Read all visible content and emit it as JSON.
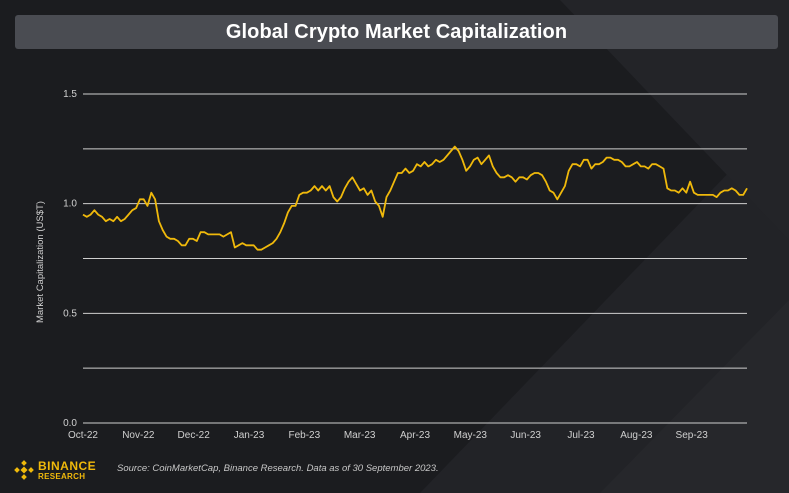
{
  "chart_data": {
    "type": "line",
    "title": "Global Crypto Market Capitalization",
    "ylabel": "Market Capitalization (US$T)",
    "xlabel": "",
    "ylim": [
      0,
      1.5
    ],
    "yticks": [
      "0.0",
      "0.5",
      "1.0",
      "1.5"
    ],
    "xtick_labels": [
      "Oct-22",
      "Nov-22",
      "Dec-22",
      "Jan-23",
      "Feb-23",
      "Mar-23",
      "Apr-23",
      "May-23",
      "Jun-23",
      "Jul-23",
      "Aug-23",
      "Sep-23"
    ],
    "grid": true,
    "series_color": "#f0b90b",
    "series": [
      {
        "values": [
          0.95,
          0.94,
          0.95,
          0.97,
          0.95,
          0.94,
          0.92,
          0.93,
          0.92,
          0.94,
          0.92,
          0.93,
          0.95,
          0.97,
          0.98,
          1.02,
          1.02,
          0.99,
          1.05,
          1.02,
          0.92,
          0.88,
          0.85,
          0.84,
          0.84,
          0.83,
          0.81,
          0.81,
          0.84,
          0.84,
          0.83,
          0.87,
          0.87,
          0.86,
          0.86,
          0.86,
          0.86,
          0.85,
          0.86,
          0.87,
          0.8,
          0.81,
          0.82,
          0.81,
          0.81,
          0.81,
          0.79,
          0.79,
          0.8,
          0.81,
          0.82,
          0.84,
          0.87,
          0.91,
          0.96,
          0.99,
          0.99,
          1.04,
          1.05,
          1.05,
          1.06,
          1.08,
          1.06,
          1.08,
          1.06,
          1.08,
          1.03,
          1.01,
          1.03,
          1.07,
          1.1,
          1.12,
          1.09,
          1.06,
          1.07,
          1.04,
          1.06,
          1.01,
          0.99,
          0.94,
          1.03,
          1.06,
          1.1,
          1.14,
          1.14,
          1.16,
          1.14,
          1.15,
          1.18,
          1.17,
          1.19,
          1.17,
          1.18,
          1.2,
          1.19,
          1.2,
          1.22,
          1.24,
          1.26,
          1.24,
          1.2,
          1.15,
          1.17,
          1.2,
          1.21,
          1.18,
          1.2,
          1.22,
          1.17,
          1.14,
          1.12,
          1.12,
          1.13,
          1.12,
          1.1,
          1.12,
          1.12,
          1.11,
          1.13,
          1.14,
          1.14,
          1.13,
          1.1,
          1.06,
          1.05,
          1.02,
          1.05,
          1.08,
          1.15,
          1.18,
          1.18,
          1.17,
          1.2,
          1.2,
          1.16,
          1.18,
          1.18,
          1.19,
          1.21,
          1.21,
          1.2,
          1.2,
          1.19,
          1.17,
          1.17,
          1.18,
          1.19,
          1.17,
          1.17,
          1.16,
          1.18,
          1.18,
          1.17,
          1.16,
          1.07,
          1.06,
          1.06,
          1.05,
          1.07,
          1.05,
          1.1,
          1.05,
          1.04,
          1.04,
          1.04,
          1.04,
          1.04,
          1.03,
          1.05,
          1.06,
          1.06,
          1.07,
          1.06,
          1.04,
          1.04,
          1.07
        ]
      }
    ]
  },
  "footer": {
    "logo_main": "BINANCE",
    "logo_sub": "RESEARCH",
    "source": "Source: CoinMarketCap, Binance Research. Data as of 30 September 2023."
  }
}
